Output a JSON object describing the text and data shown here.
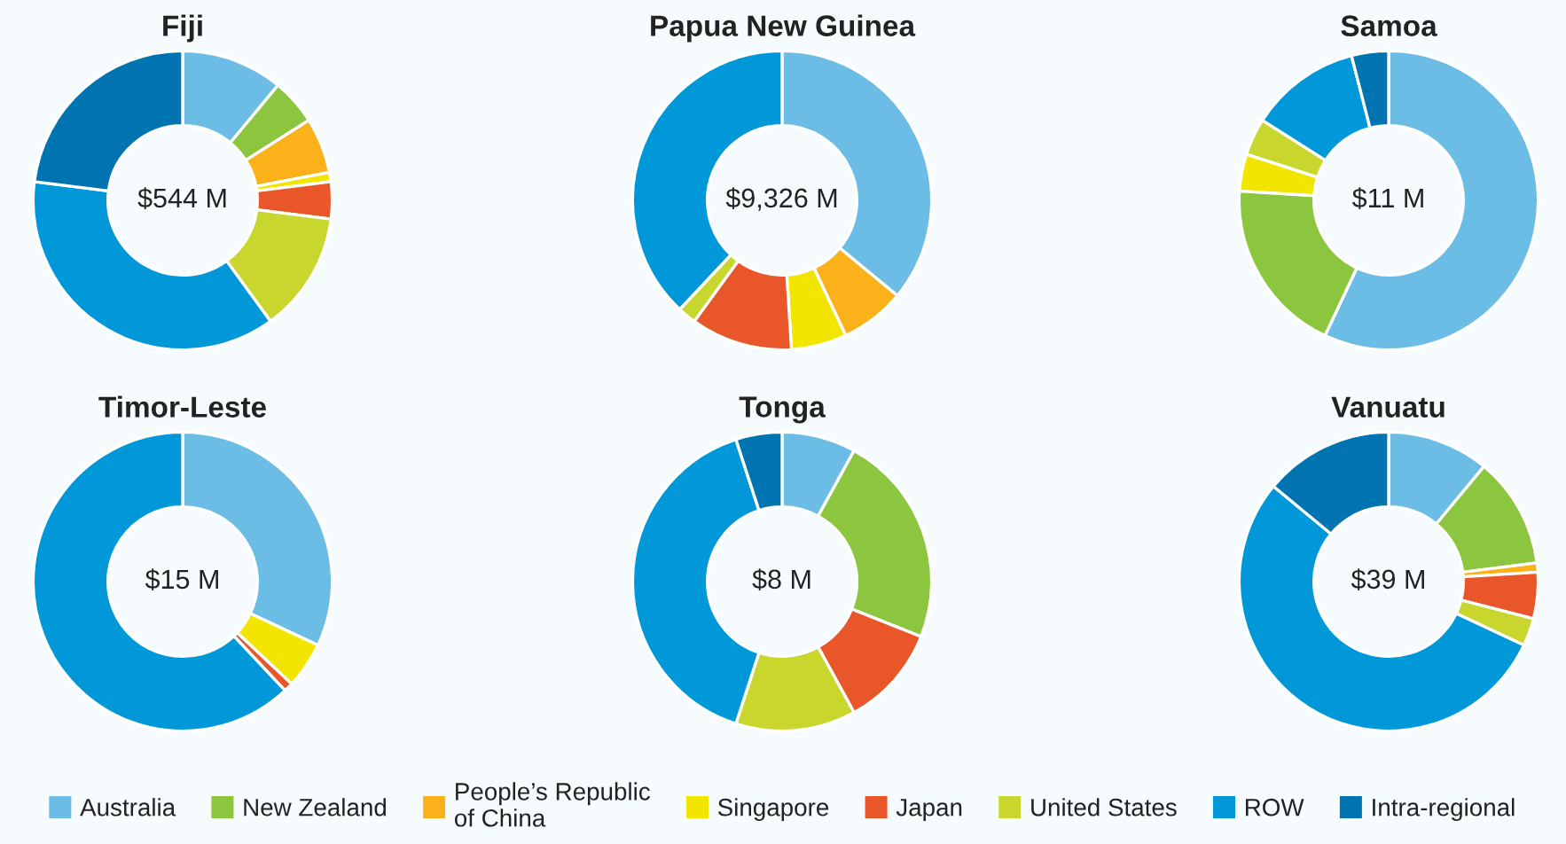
{
  "chart_data": {
    "type": "donut",
    "categories": [
      "Australia",
      "New Zealand",
      "People’s Republic\nof China",
      "Singapore",
      "Japan",
      "United States",
      "ROW",
      "Intra-regional"
    ],
    "colors": [
      "#6cbde6",
      "#8cc63f",
      "#fbb21a",
      "#f2e600",
      "#e8562a",
      "#c9d62e",
      "#0098d8",
      "#0074b0"
    ],
    "series": [
      {
        "name": "Fiji",
        "values": [
          11,
          5,
          6,
          1,
          4,
          13,
          37,
          23
        ]
      },
      {
        "name": "Papua New Guinea",
        "values": [
          36,
          0,
          7,
          6,
          11,
          2,
          38,
          0
        ]
      },
      {
        "name": "Samoa",
        "values": [
          57,
          19,
          0,
          4,
          0,
          4,
          12,
          4
        ]
      },
      {
        "name": "Timor-Leste",
        "values": [
          32,
          0,
          0,
          5,
          1,
          0,
          62,
          0
        ]
      },
      {
        "name": "Tonga",
        "values": [
          8,
          23,
          0,
          0,
          11,
          13,
          40,
          5
        ]
      },
      {
        "name": "Vanuatu",
        "values": [
          11,
          12,
          1,
          0,
          5,
          3,
          54,
          14
        ]
      }
    ],
    "annotations": [
      "$544 M",
      "$9,326 M",
      "$11 M",
      "$15 M",
      "$8 M",
      "$39 M"
    ],
    "legend": "bottom"
  }
}
